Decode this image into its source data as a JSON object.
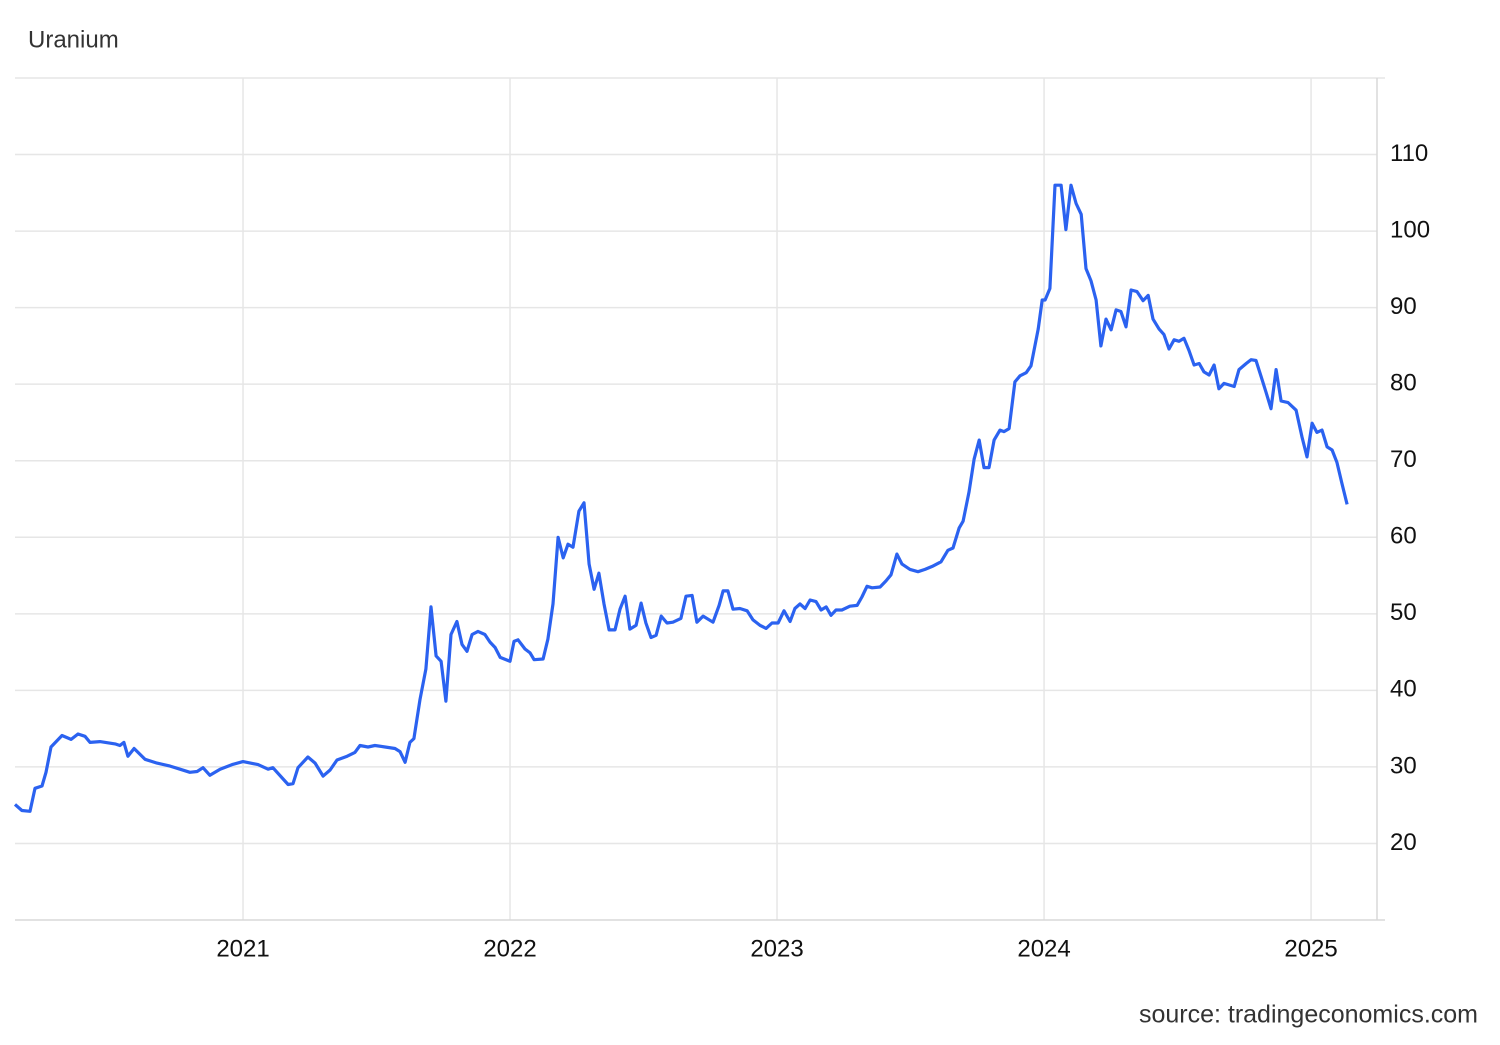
{
  "chart_data": {
    "type": "line",
    "title": "Uranium",
    "source": "source: tradingeconomics.com",
    "grid": true,
    "xlim": [
      2020.146,
      2025.247
    ],
    "xticks": [
      2021,
      2022,
      2023,
      2024,
      2025
    ],
    "ylim": [
      10,
      120
    ],
    "yticks": [
      20,
      30,
      40,
      50,
      60,
      70,
      80,
      90,
      100,
      110
    ],
    "x": [
      2020.146,
      2020.172,
      2020.202,
      2020.221,
      2020.247,
      2020.262,
      2020.281,
      2020.322,
      2020.356,
      2020.382,
      2020.408,
      2020.427,
      2020.464,
      2020.521,
      2020.539,
      2020.554,
      2020.569,
      2020.592,
      2020.633,
      2020.678,
      2020.727,
      2020.764,
      2020.801,
      2020.828,
      2020.85,
      2020.876,
      2020.914,
      2020.959,
      2021.0,
      2021.056,
      2021.094,
      2021.112,
      2021.169,
      2021.187,
      2021.206,
      2021.243,
      2021.27,
      2021.3,
      2021.326,
      2021.352,
      2021.39,
      2021.419,
      2021.438,
      2021.468,
      2021.494,
      2021.532,
      2021.569,
      2021.588,
      2021.607,
      2021.625,
      2021.64,
      2021.663,
      2021.685,
      2021.704,
      2021.723,
      2021.742,
      2021.76,
      2021.779,
      2021.801,
      2021.82,
      2021.839,
      2021.858,
      2021.88,
      2021.906,
      2021.925,
      2021.944,
      2021.963,
      2022.0,
      2022.015,
      2022.03,
      2022.056,
      2022.075,
      2022.09,
      2022.124,
      2022.142,
      2022.161,
      2022.18,
      2022.199,
      2022.217,
      2022.236,
      2022.258,
      2022.277,
      2022.296,
      2022.315,
      2022.333,
      2022.352,
      2022.371,
      2022.393,
      2022.412,
      2022.431,
      2022.449,
      2022.472,
      2022.491,
      2022.509,
      2022.528,
      2022.547,
      2022.566,
      2022.588,
      2022.61,
      2022.64,
      2022.659,
      2022.682,
      2022.7,
      2022.723,
      2022.76,
      2022.783,
      2022.798,
      2022.816,
      2022.835,
      2022.861,
      2022.888,
      2022.91,
      2022.936,
      2022.959,
      2022.981,
      2023.004,
      2023.026,
      2023.049,
      2023.067,
      2023.086,
      2023.105,
      2023.124,
      2023.146,
      2023.165,
      2023.184,
      2023.202,
      2023.221,
      2023.243,
      2023.273,
      2023.3,
      2023.318,
      2023.337,
      2023.356,
      2023.386,
      2023.408,
      2023.427,
      2023.449,
      2023.468,
      2023.498,
      2023.528,
      2023.554,
      2023.581,
      2023.614,
      2023.64,
      2023.659,
      2023.682,
      2023.697,
      2023.719,
      2023.738,
      2023.757,
      2023.775,
      2023.794,
      2023.813,
      2023.835,
      2023.85,
      2023.869,
      2023.891,
      2023.91,
      2023.933,
      2023.951,
      2023.978,
      2023.993,
      2024.004,
      2024.022,
      2024.041,
      2024.064,
      2024.082,
      2024.101,
      2024.12,
      2024.139,
      2024.157,
      2024.176,
      2024.195,
      2024.213,
      2024.232,
      2024.251,
      2024.27,
      2024.288,
      2024.307,
      2024.326,
      2024.348,
      2024.371,
      2024.39,
      2024.408,
      2024.431,
      2024.449,
      2024.468,
      2024.487,
      2024.506,
      2024.524,
      2024.543,
      2024.562,
      2024.581,
      2024.599,
      2024.618,
      2024.637,
      2024.655,
      2024.674,
      2024.712,
      2024.73,
      2024.757,
      2024.775,
      2024.794,
      2024.813,
      2024.831,
      2024.85,
      2024.869,
      2024.888,
      2024.914,
      2024.944,
      2024.966,
      2024.985,
      2025.004,
      2025.022,
      2025.041,
      2025.06,
      2025.079,
      2025.097,
      2025.116,
      2025.135
    ],
    "series": [
      {
        "name": "Uranium",
        "color": "#2b62f0",
        "values": [
          25.1,
          24.3,
          24.2,
          27.2,
          27.5,
          29.3,
          32.6,
          34.1,
          33.6,
          34.3,
          34.0,
          33.2,
          33.3,
          33.0,
          32.8,
          33.2,
          31.4,
          32.4,
          31.0,
          30.5,
          30.1,
          29.7,
          29.3,
          29.4,
          29.9,
          28.9,
          29.7,
          30.3,
          30.7,
          30.3,
          29.7,
          29.9,
          27.7,
          27.8,
          29.9,
          31.3,
          30.5,
          28.8,
          29.6,
          30.9,
          31.4,
          31.9,
          32.8,
          32.6,
          32.8,
          32.6,
          32.4,
          32.0,
          30.6,
          33.2,
          33.7,
          38.8,
          42.8,
          50.9,
          44.5,
          43.8,
          38.6,
          47.3,
          49.0,
          46.0,
          45.1,
          47.3,
          47.7,
          47.3,
          46.3,
          45.6,
          44.3,
          43.8,
          46.4,
          46.6,
          45.4,
          44.9,
          44.0,
          44.1,
          46.7,
          51.3,
          60.0,
          57.3,
          59.1,
          58.7,
          63.4,
          64.5,
          56.5,
          53.2,
          55.3,
          51.3,
          47.9,
          47.9,
          50.6,
          52.3,
          48.0,
          48.5,
          51.4,
          48.8,
          46.9,
          47.2,
          49.7,
          48.8,
          48.9,
          49.4,
          52.3,
          52.4,
          48.9,
          49.7,
          48.9,
          51.1,
          53.0,
          53.0,
          50.6,
          50.7,
          50.4,
          49.2,
          48.5,
          48.1,
          48.8,
          48.8,
          50.4,
          49.0,
          50.7,
          51.3,
          50.7,
          51.8,
          51.6,
          50.5,
          50.9,
          49.8,
          50.5,
          50.5,
          51.0,
          51.1,
          52.2,
          53.6,
          53.4,
          53.5,
          54.3,
          55.1,
          57.8,
          56.5,
          55.8,
          55.5,
          55.8,
          56.2,
          56.8,
          58.3,
          58.6,
          61.2,
          62.1,
          65.9,
          70.2,
          72.7,
          69.1,
          69.1,
          72.7,
          74.0,
          73.8,
          74.2,
          80.3,
          81.1,
          81.5,
          82.4,
          87.2,
          91.0,
          91.0,
          92.5,
          106.0,
          106.0,
          100.2,
          106.0,
          103.6,
          102.2,
          95.1,
          93.5,
          91.0,
          85.0,
          88.5,
          87.1,
          89.7,
          89.5,
          87.5,
          92.3,
          92.1,
          90.9,
          91.6,
          88.5,
          87.2,
          86.5,
          84.6,
          85.8,
          85.6,
          86.0,
          84.4,
          82.5,
          82.7,
          81.6,
          81.2,
          82.5,
          79.4,
          80.1,
          79.7,
          81.9,
          82.7,
          83.2,
          83.1,
          81.0,
          79.0,
          76.8,
          81.9,
          77.8,
          77.6,
          76.6,
          73.1,
          70.5,
          74.9,
          73.7,
          74.0,
          71.8,
          71.4,
          69.8,
          67.0,
          64.3
        ]
      }
    ]
  }
}
